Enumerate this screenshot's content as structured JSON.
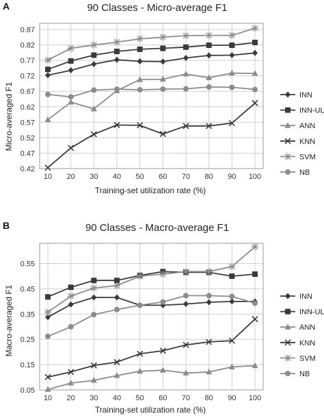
{
  "figure": {
    "panels": [
      "A",
      "B"
    ]
  },
  "chart_data": [
    {
      "panel": "A",
      "type": "line",
      "title": "90 Classes - Micro-average F1",
      "xlabel": "Training-set utilization rate (%)",
      "ylabel": "Micro-averaged F1",
      "x": [
        10,
        20,
        30,
        40,
        50,
        60,
        70,
        80,
        90,
        100
      ],
      "yticks": [
        0.42,
        0.47,
        0.52,
        0.57,
        0.62,
        0.67,
        0.72,
        0.77,
        0.82,
        0.87
      ],
      "ylim": [
        0.42,
        0.89
      ],
      "grid": true,
      "legend_position": "right",
      "series": [
        {
          "name": "INN",
          "marker": "diamond",
          "color": "#3a3a3a",
          "values": [
            0.722,
            0.738,
            0.758,
            0.772,
            0.767,
            0.766,
            0.778,
            0.786,
            0.787,
            0.794
          ]
        },
        {
          "name": "INN-UL",
          "marker": "square",
          "color": "#3a3a3a",
          "values": [
            0.741,
            0.768,
            0.787,
            0.799,
            0.806,
            0.809,
            0.813,
            0.819,
            0.819,
            0.828
          ]
        },
        {
          "name": "ANN",
          "marker": "triangle",
          "color": "#8c8c8c",
          "values": [
            0.578,
            0.635,
            0.613,
            0.672,
            0.708,
            0.709,
            0.726,
            0.714,
            0.729,
            0.728
          ]
        },
        {
          "name": "KNN",
          "marker": "x",
          "color": "#3a3a3a",
          "values": [
            0.423,
            0.487,
            0.531,
            0.561,
            0.56,
            0.532,
            0.558,
            0.558,
            0.567,
            0.632
          ]
        },
        {
          "name": "SVM",
          "marker": "star",
          "color": "#8c8c8c",
          "values": [
            0.771,
            0.809,
            0.82,
            0.829,
            0.84,
            0.845,
            0.85,
            0.851,
            0.851,
            0.874
          ]
        },
        {
          "name": "NB",
          "marker": "circle",
          "color": "#8c8c8c",
          "values": [
            0.66,
            0.652,
            0.674,
            0.677,
            0.675,
            0.677,
            0.678,
            0.684,
            0.683,
            0.676
          ]
        }
      ]
    },
    {
      "panel": "B",
      "type": "line",
      "title": "90 Classes - Macro-average F1",
      "xlabel": "Training-set utilization rate (%)",
      "ylabel": "Macro-averaged F1",
      "x": [
        10,
        20,
        30,
        40,
        50,
        60,
        70,
        80,
        90,
        100
      ],
      "yticks": [
        0.05,
        0.15,
        0.25,
        0.35,
        0.45,
        0.55
      ],
      "ylim": [
        0.05,
        0.63
      ],
      "grid": true,
      "legend_position": "right",
      "series": [
        {
          "name": "INN",
          "marker": "diamond",
          "color": "#3a3a3a",
          "values": [
            0.338,
            0.388,
            0.416,
            0.416,
            0.385,
            0.385,
            0.39,
            0.397,
            0.4,
            0.4
          ]
        },
        {
          "name": "INN-UL",
          "marker": "square",
          "color": "#3a3a3a",
          "values": [
            0.418,
            0.456,
            0.483,
            0.483,
            0.503,
            0.518,
            0.515,
            0.515,
            0.5,
            0.508
          ]
        },
        {
          "name": "ANN",
          "marker": "triangle",
          "color": "#8c8c8c",
          "values": [
            0.052,
            0.077,
            0.088,
            0.107,
            0.124,
            0.128,
            0.117,
            0.121,
            0.141,
            0.146
          ]
        },
        {
          "name": "KNN",
          "marker": "x",
          "color": "#3a3a3a",
          "values": [
            0.101,
            0.121,
            0.147,
            0.16,
            0.193,
            0.205,
            0.228,
            0.24,
            0.245,
            0.33
          ]
        },
        {
          "name": "SVM",
          "marker": "star",
          "color": "#8c8c8c",
          "values": [
            0.358,
            0.421,
            0.453,
            0.463,
            0.5,
            0.508,
            0.518,
            0.518,
            0.538,
            0.616
          ]
        },
        {
          "name": "NB",
          "marker": "circle",
          "color": "#8c8c8c",
          "values": [
            0.262,
            0.3,
            0.348,
            0.368,
            0.385,
            0.398,
            0.423,
            0.423,
            0.42,
            0.393
          ]
        }
      ]
    }
  ]
}
